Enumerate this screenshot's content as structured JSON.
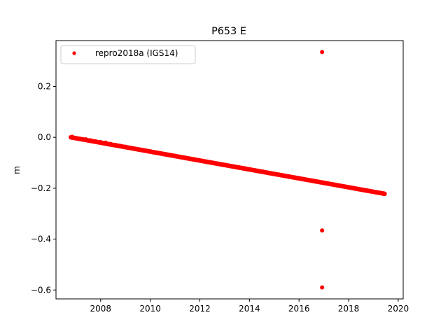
{
  "chart_data": {
    "type": "scatter",
    "title": "P653 E",
    "xlabel": "",
    "ylabel": "m",
    "xlim": [
      2006.2,
      2020.2
    ],
    "ylim": [
      -0.635,
      0.38
    ],
    "x_ticks": [
      2008,
      2010,
      2012,
      2014,
      2016,
      2018,
      2020
    ],
    "y_ticks": [
      0.2,
      0.0,
      -0.2,
      -0.4,
      -0.6
    ],
    "x_tick_labels": [
      "2008",
      "2010",
      "2012",
      "2014",
      "2016",
      "2018",
      "2020"
    ],
    "y_tick_labels": [
      "0.2",
      "0.0",
      "−0.2",
      "−0.4",
      "−0.6"
    ],
    "legend_position": "top-left",
    "grid": false,
    "series": [
      {
        "name": "repro2018a (IGS14)",
        "color": "#ff0000",
        "trend": {
          "x_start": 2006.8,
          "y_start": 0.0,
          "x_end": 2019.45,
          "y_end": -0.222
        },
        "points": [
          [
            2006.85,
            0.002
          ],
          [
            2006.9,
            -0.001
          ],
          [
            2007.0,
            -0.004
          ],
          [
            2007.2,
            -0.007
          ],
          [
            2007.4,
            -0.008
          ],
          [
            2007.6,
            -0.012
          ],
          [
            2007.8,
            -0.016
          ],
          [
            2008.0,
            -0.019
          ],
          [
            2008.2,
            -0.021
          ],
          [
            2008.4,
            -0.026
          ],
          [
            2008.6,
            -0.03
          ],
          [
            2008.8,
            -0.034
          ],
          [
            2009.0,
            -0.037
          ],
          [
            2009.2,
            -0.042
          ],
          [
            2009.4,
            -0.045
          ],
          [
            2009.6,
            -0.048
          ],
          [
            2009.8,
            -0.052
          ],
          [
            2010.0,
            -0.055
          ],
          [
            2010.2,
            -0.06
          ],
          [
            2010.4,
            -0.063
          ],
          [
            2010.6,
            -0.066
          ],
          [
            2010.8,
            -0.07
          ],
          [
            2011.0,
            -0.073
          ],
          [
            2011.2,
            -0.077
          ],
          [
            2011.4,
            -0.081
          ],
          [
            2011.6,
            -0.084
          ],
          [
            2011.8,
            -0.087
          ],
          [
            2012.0,
            -0.091
          ],
          [
            2012.2,
            -0.095
          ],
          [
            2012.4,
            -0.098
          ],
          [
            2012.6,
            -0.101
          ],
          [
            2012.8,
            -0.105
          ],
          [
            2013.0,
            -0.108
          ],
          [
            2013.2,
            -0.112
          ],
          [
            2013.4,
            -0.116
          ],
          [
            2013.6,
            -0.119
          ],
          [
            2013.8,
            -0.122
          ],
          [
            2014.0,
            -0.126
          ],
          [
            2014.2,
            -0.129
          ],
          [
            2014.4,
            -0.133
          ],
          [
            2014.6,
            -0.137
          ],
          [
            2014.8,
            -0.14
          ],
          [
            2015.0,
            -0.144
          ],
          [
            2015.2,
            -0.147
          ],
          [
            2015.4,
            -0.151
          ],
          [
            2015.6,
            -0.154
          ],
          [
            2015.8,
            -0.158
          ],
          [
            2016.0,
            -0.161
          ],
          [
            2016.2,
            -0.165
          ],
          [
            2016.4,
            -0.168
          ],
          [
            2016.6,
            -0.172
          ],
          [
            2016.8,
            -0.175
          ],
          [
            2017.0,
            -0.179
          ],
          [
            2017.2,
            -0.182
          ],
          [
            2017.4,
            -0.186
          ],
          [
            2017.6,
            -0.189
          ],
          [
            2017.8,
            -0.193
          ],
          [
            2018.0,
            -0.196
          ],
          [
            2018.2,
            -0.2
          ],
          [
            2018.4,
            -0.203
          ],
          [
            2018.6,
            -0.207
          ],
          [
            2018.8,
            -0.21
          ],
          [
            2019.0,
            -0.214
          ],
          [
            2019.2,
            -0.218
          ],
          [
            2019.4,
            -0.222
          ],
          [
            2016.93,
            0.335
          ],
          [
            2016.93,
            -0.366
          ],
          [
            2016.93,
            -0.59
          ]
        ]
      }
    ]
  }
}
